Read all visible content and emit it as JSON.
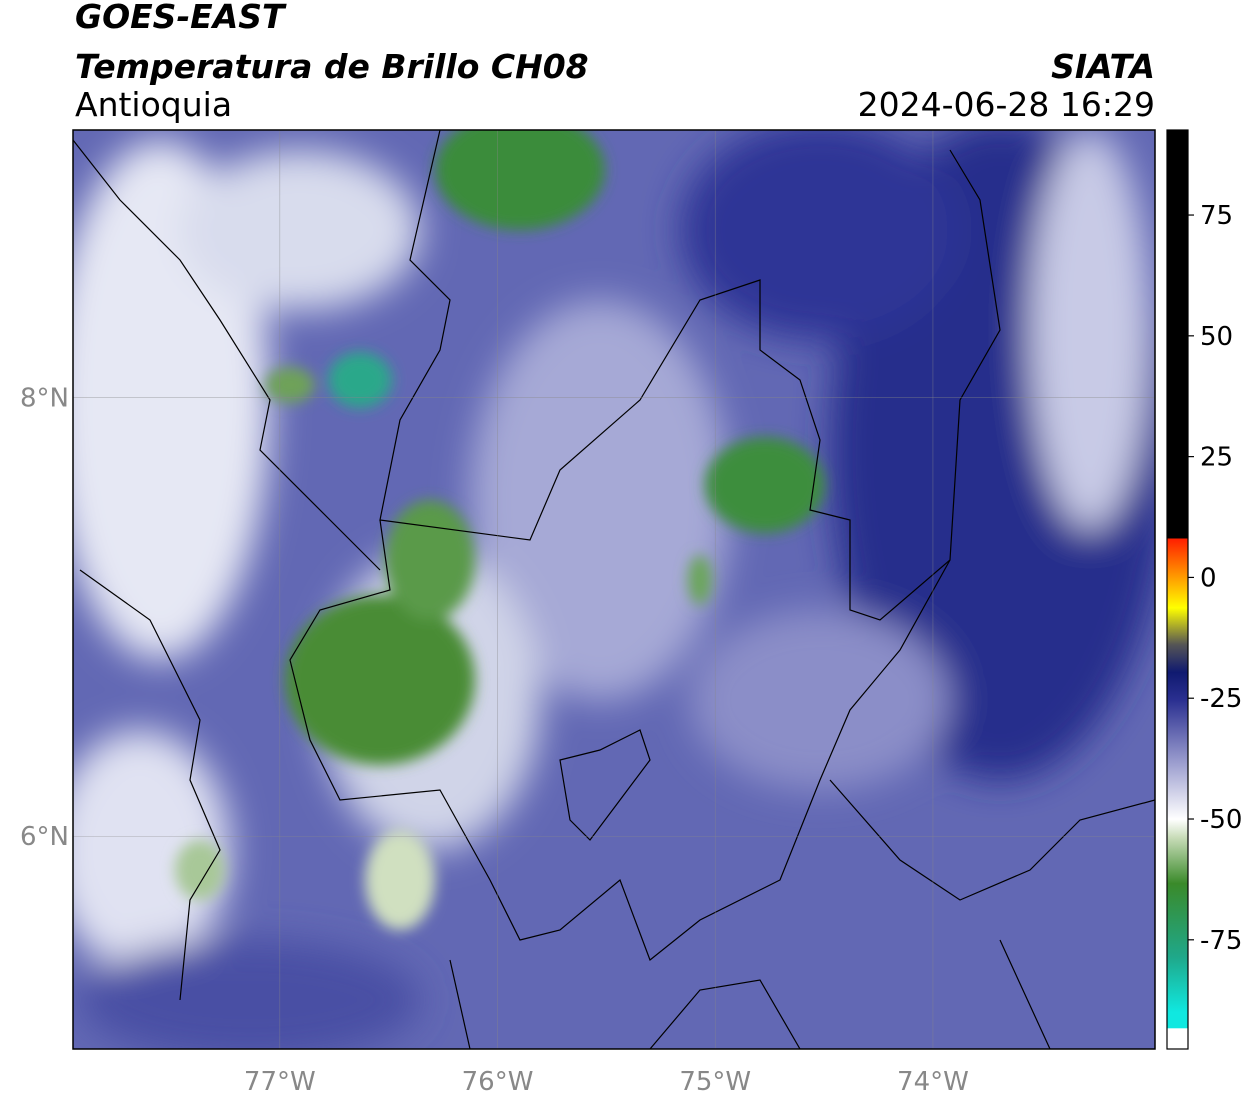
{
  "header": {
    "satellite": "GOES-EAST",
    "product": "Temperatura de Brillo CH08",
    "region": "Antioquia",
    "source": "SIATA",
    "timestamp": "2024-06-28 16:29"
  },
  "map": {
    "lonlim": [
      -77.95,
      -72.98
    ],
    "latlim": [
      5.03,
      9.22
    ],
    "lon_ticks": [
      {
        "value": -77,
        "label": "77°W"
      },
      {
        "value": -76,
        "label": "76°W"
      },
      {
        "value": -75,
        "label": "75°W"
      },
      {
        "value": -74,
        "label": "74°W"
      }
    ],
    "lat_ticks": [
      {
        "value": 8,
        "label": "8°N"
      },
      {
        "value": 6,
        "label": "6°N"
      }
    ],
    "grid": true
  },
  "colorbar": {
    "lim": [
      -97.6,
      92.6
    ],
    "ticks": [
      -75,
      -50,
      -25,
      0,
      25,
      50,
      75
    ]
  }
}
